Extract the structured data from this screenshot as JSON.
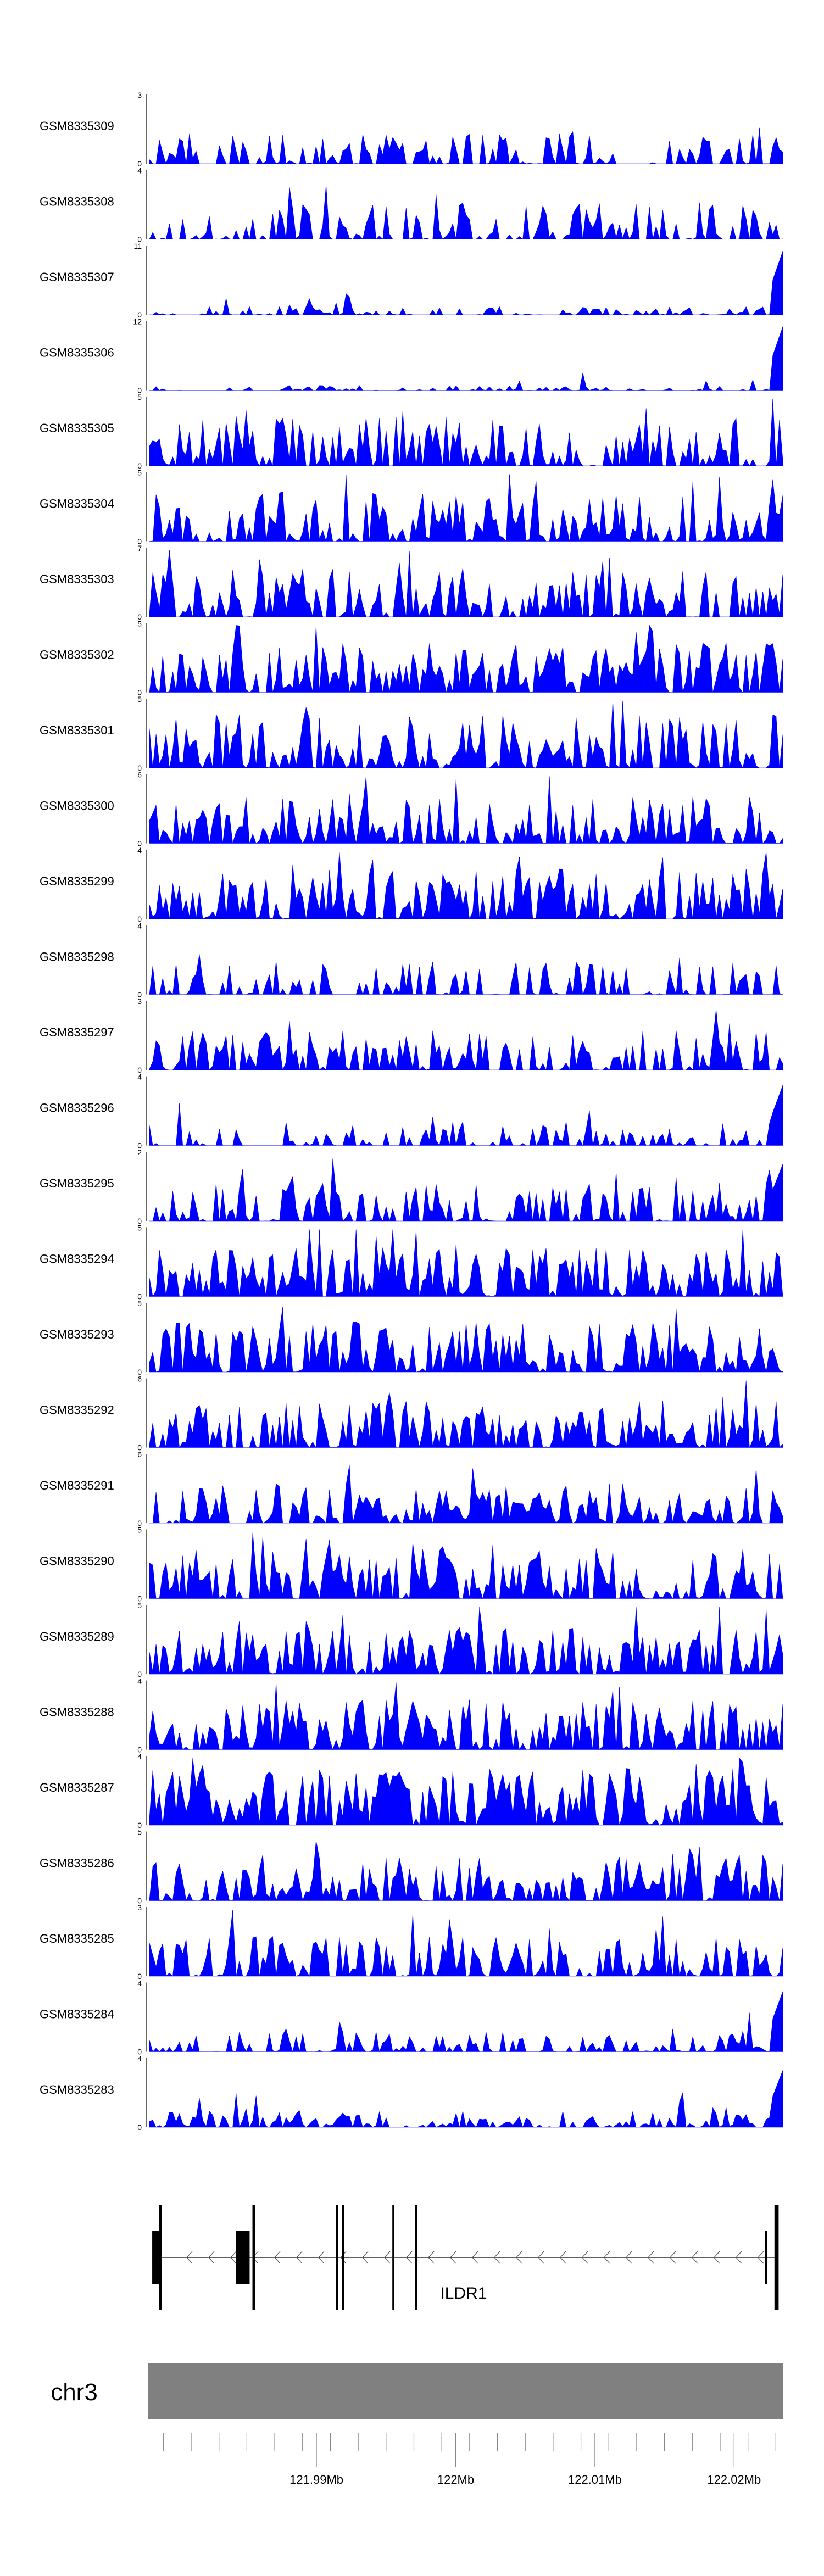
{
  "chart_data": {
    "type": "area",
    "genome_region": {
      "chromosome": "chr3",
      "start": 121.978,
      "end": 122.0235,
      "unit": "Mb"
    },
    "tracks": [
      {
        "name": "GSM8335309",
        "ymax": "3",
        "ymin": "0",
        "seed": 11,
        "density": 0.55,
        "peak": 0.45,
        "end_spike": 0.0
      },
      {
        "name": "GSM8335308",
        "ymax": "4",
        "ymin": "0",
        "seed": 12,
        "density": 0.65,
        "peak": 0.55,
        "end_spike": 0.0
      },
      {
        "name": "GSM8335307",
        "ymax": "11",
        "ymin": "0",
        "seed": 13,
        "density": 0.55,
        "peak": 0.12,
        "end_spike": 0.95
      },
      {
        "name": "GSM8335306",
        "ymax": "12",
        "ymin": "0",
        "seed": 14,
        "density": 0.4,
        "peak": 0.08,
        "end_spike": 0.95
      },
      {
        "name": "GSM8335305",
        "ymax": "5",
        "ymin": "0",
        "seed": 15,
        "density": 0.85,
        "peak": 0.75,
        "end_spike": 0.0
      },
      {
        "name": "GSM8335304",
        "ymax": "5",
        "ymin": "0",
        "seed": 16,
        "density": 0.85,
        "peak": 0.75,
        "end_spike": 0.0
      },
      {
        "name": "GSM8335303",
        "ymax": "7",
        "ymin": "0",
        "seed": 17,
        "density": 0.75,
        "peak": 0.7,
        "end_spike": 0.0
      },
      {
        "name": "GSM8335302",
        "ymax": "5",
        "ymin": "0",
        "seed": 18,
        "density": 0.85,
        "peak": 0.75,
        "end_spike": 0.0
      },
      {
        "name": "GSM8335301",
        "ymax": "5",
        "ymin": "0",
        "seed": 19,
        "density": 0.85,
        "peak": 0.8,
        "end_spike": 0.0
      },
      {
        "name": "GSM8335300",
        "ymax": "6",
        "ymin": "0",
        "seed": 20,
        "density": 0.8,
        "peak": 0.7,
        "end_spike": 0.0
      },
      {
        "name": "GSM8335299",
        "ymax": "4",
        "ymin": "0",
        "seed": 21,
        "density": 0.9,
        "peak": 0.75,
        "end_spike": 0.0
      },
      {
        "name": "GSM8335298",
        "ymax": "4",
        "ymin": "0",
        "seed": 22,
        "density": 0.55,
        "peak": 0.5,
        "end_spike": 0.0
      },
      {
        "name": "GSM8335297",
        "ymax": "3",
        "ymin": "0",
        "seed": 23,
        "density": 0.7,
        "peak": 0.6,
        "end_spike": 0.0
      },
      {
        "name": "GSM8335296",
        "ymax": "4",
        "ymin": "0",
        "seed": 24,
        "density": 0.55,
        "peak": 0.35,
        "end_spike": 0.9
      },
      {
        "name": "GSM8335295",
        "ymax": "2",
        "ymin": "0",
        "seed": 25,
        "density": 0.7,
        "peak": 0.6,
        "end_spike": 0.85
      },
      {
        "name": "GSM8335294",
        "ymax": "5",
        "ymin": "0",
        "seed": 26,
        "density": 0.9,
        "peak": 0.75,
        "end_spike": 0.0
      },
      {
        "name": "GSM8335293",
        "ymax": "5",
        "ymin": "0",
        "seed": 27,
        "density": 0.9,
        "peak": 0.75,
        "end_spike": 0.0
      },
      {
        "name": "GSM8335292",
        "ymax": "6",
        "ymin": "0",
        "seed": 28,
        "density": 0.85,
        "peak": 0.7,
        "end_spike": 0.0
      },
      {
        "name": "GSM8335291",
        "ymax": "6",
        "ymin": "0",
        "seed": 29,
        "density": 0.85,
        "peak": 0.6,
        "end_spike": 0.0
      },
      {
        "name": "GSM8335290",
        "ymax": "5",
        "ymin": "0",
        "seed": 30,
        "density": 0.85,
        "peak": 0.75,
        "end_spike": 0.0
      },
      {
        "name": "GSM8335289",
        "ymax": "5",
        "ymin": "0",
        "seed": 31,
        "density": 0.85,
        "peak": 0.7,
        "end_spike": 0.0
      },
      {
        "name": "GSM8335288",
        "ymax": "4",
        "ymin": "0",
        "seed": 32,
        "density": 0.85,
        "peak": 0.75,
        "end_spike": 0.0
      },
      {
        "name": "GSM8335287",
        "ymax": "4",
        "ymin": "0",
        "seed": 33,
        "density": 0.95,
        "peak": 0.85,
        "end_spike": 0.0
      },
      {
        "name": "GSM8335286",
        "ymax": "5",
        "ymin": "0",
        "seed": 34,
        "density": 0.85,
        "peak": 0.7,
        "end_spike": 0.0
      },
      {
        "name": "GSM8335285",
        "ymax": "3",
        "ymin": "0",
        "seed": 35,
        "density": 0.8,
        "peak": 0.6,
        "end_spike": 0.0
      },
      {
        "name": "GSM8335284",
        "ymax": "4",
        "ymin": "0",
        "seed": 36,
        "density": 0.55,
        "peak": 0.3,
        "end_spike": 0.9
      },
      {
        "name": "GSM8335283",
        "ymax": "4",
        "ymin": "0",
        "seed": 37,
        "density": 0.75,
        "peak": 0.25,
        "end_spike": 0.85
      }
    ],
    "gene": {
      "name": "ILDR1",
      "strand": "-",
      "tx_start": 121.9782,
      "tx_end": 122.0232,
      "thick_exons": [
        [
          121.9782,
          121.9788
        ],
        [
          121.9842,
          121.9852
        ],
        [
          122.0222,
          122.0223
        ]
      ],
      "exons": [
        [
          121.9854,
          121.9856
        ],
        [
          121.9914,
          121.99155
        ],
        [
          121.99185,
          121.992
        ],
        [
          121.99545,
          121.99555
        ],
        [
          121.9971,
          121.99725
        ],
        [
          122.023,
          122.0232
        ]
      ],
      "thin_lines": [
        [
          121.9787,
          121.9789
        ],
        [
          122.0229,
          122.02305
        ]
      ]
    },
    "chromosome": {
      "name": "chr3"
    },
    "axis": {
      "ticks": [
        121.979,
        121.981,
        121.983,
        121.985,
        121.987,
        121.989,
        121.991,
        121.993,
        121.995,
        121.997,
        121.999,
        122.001,
        122.003,
        122.005,
        122.007,
        122.009,
        122.011,
        122.013,
        122.015,
        122.017,
        122.019,
        122.021,
        122.023
      ],
      "labeled_ticks": [
        121.99,
        122.0,
        122.01,
        122.02
      ],
      "labels": [
        "121.99Mb",
        "122Mb",
        "122.01Mb",
        "122.02Mb"
      ]
    },
    "colors": {
      "signal": "#0000ff",
      "gene": "#000000",
      "chromosome_bar": "#808080"
    }
  }
}
